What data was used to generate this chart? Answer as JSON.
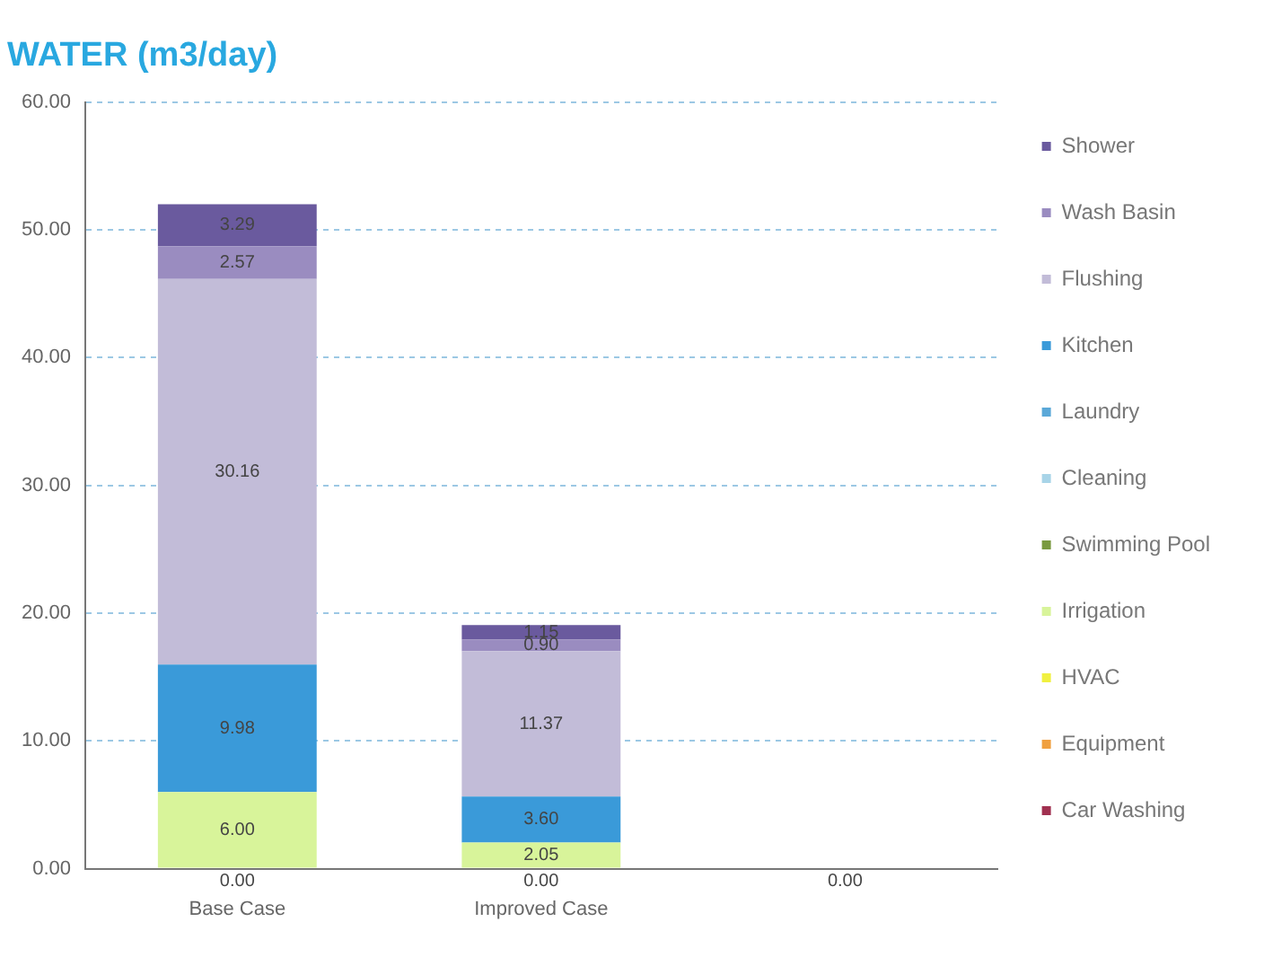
{
  "chart_data": {
    "type": "bar",
    "title": "WATER (m3/day)",
    "stacked": true,
    "categories": [
      "Base Case",
      "Improved Case",
      null
    ],
    "ylim": [
      0,
      60
    ],
    "yticks": [
      {
        "value": 0,
        "label": "0.00"
      },
      {
        "value": 10,
        "label": "10.00"
      },
      {
        "value": 20,
        "label": "20.00"
      },
      {
        "value": 30,
        "label": "30.00"
      },
      {
        "value": 40,
        "label": "40.00"
      },
      {
        "value": 50,
        "label": "50.00"
      },
      {
        "value": 60,
        "label": "60.00"
      }
    ],
    "grid": "y",
    "legend": "right",
    "series": [
      {
        "name": "Car Washing",
        "color": "#a03050",
        "values": [
          0,
          0,
          0
        ],
        "value_labels": [
          "0.00",
          "0.00",
          "0.00"
        ]
      },
      {
        "name": "Equipment",
        "color": "#f0a040",
        "values": [
          0,
          0,
          0
        ]
      },
      {
        "name": "HVAC",
        "color": "#f0f040",
        "values": [
          0,
          0,
          0
        ]
      },
      {
        "name": "Irrigation",
        "color": "#d8f49a",
        "values": [
          6,
          2.05,
          0
        ],
        "value_labels": [
          "6.00",
          "2.05",
          null
        ]
      },
      {
        "name": "Swimming Pool",
        "color": "#7a9a40",
        "values": [
          0,
          0,
          0
        ]
      },
      {
        "name": "Cleaning",
        "color": "#a8d4e8",
        "values": [
          0,
          0,
          0
        ]
      },
      {
        "name": "Laundry",
        "color": "#5aa8d8",
        "values": [
          0,
          0,
          0
        ]
      },
      {
        "name": "Kitchen",
        "color": "#3a9ad9",
        "values": [
          9.98,
          3.6,
          0
        ],
        "value_labels": [
          "9.98",
          "3.60",
          null
        ]
      },
      {
        "name": "Flushing",
        "color": "#c2bcd8",
        "values": [
          30.16,
          11.37,
          0
        ],
        "value_labels": [
          "30.16",
          "11.37",
          null
        ]
      },
      {
        "name": "Wash Basin",
        "color": "#9a8cc0",
        "values": [
          2.57,
          0.9,
          0
        ],
        "value_labels": [
          "2.57",
          "0.90",
          null
        ]
      },
      {
        "name": "Shower",
        "color": "#6a5a9e",
        "values": [
          3.29,
          1.15,
          0
        ],
        "value_labels": [
          "3.29",
          "1.15",
          null
        ]
      }
    ]
  }
}
